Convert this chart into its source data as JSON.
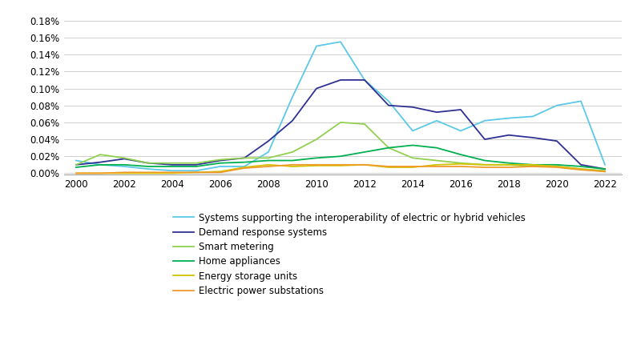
{
  "years": [
    2000,
    2001,
    2002,
    2003,
    2004,
    2005,
    2006,
    2007,
    2008,
    2009,
    2010,
    2011,
    2012,
    2013,
    2014,
    2015,
    2016,
    2017,
    2018,
    2019,
    2020,
    2021,
    2022
  ],
  "series": [
    {
      "label": "Systems supporting the interoperability of electric or hybrid vehicles",
      "color": "#5BC8E8",
      "values": [
        0.00015,
        0.0001,
        8e-05,
        5e-05,
        3e-05,
        3e-05,
        8e-05,
        8e-05,
        0.00025,
        0.0009,
        0.0015,
        0.00155,
        0.0011,
        0.00085,
        0.0005,
        0.00062,
        0.0005,
        0.00062,
        0.00065,
        0.00067,
        0.0008,
        0.00085,
        0.0001
      ]
    },
    {
      "label": "Demand response systems",
      "color": "#2E3192",
      "values": [
        0.0001,
        0.00013,
        0.00017,
        0.00012,
        0.0001,
        0.0001,
        0.00015,
        0.00018,
        0.00038,
        0.00062,
        0.001,
        0.0011,
        0.0011,
        0.0008,
        0.00078,
        0.00072,
        0.00075,
        0.0004,
        0.00045,
        0.00042,
        0.00038,
        0.0001,
        5e-05
      ]
    },
    {
      "label": "Smart metering",
      "color": "#92D050",
      "values": [
        0.0001,
        0.00022,
        0.00018,
        0.00012,
        0.00012,
        0.00012,
        0.00016,
        0.00018,
        0.00018,
        0.00025,
        0.0004,
        0.0006,
        0.00058,
        0.0003,
        0.00018,
        0.00015,
        0.00012,
        0.0001,
        0.0001,
        8e-05,
        8e-05,
        5e-05,
        3e-05
      ]
    },
    {
      "label": "Home appliances",
      "color": "#00B050",
      "values": [
        7e-05,
        0.0001,
        0.0001,
        8e-05,
        8e-05,
        8e-05,
        0.00012,
        0.00013,
        0.00015,
        0.00015,
        0.00018,
        0.0002,
        0.00025,
        0.0003,
        0.00033,
        0.0003,
        0.00022,
        0.00015,
        0.00012,
        0.0001,
        0.0001,
        8e-05,
        5e-05
      ]
    },
    {
      "label": "Energy storage units",
      "color": "#D4C200",
      "values": [
        0.0,
        0.0,
        0.0,
        0.0,
        0.0,
        1e-05,
        2e-05,
        7e-05,
        0.0001,
        8e-05,
        9e-05,
        9e-05,
        0.0001,
        7e-05,
        7e-05,
        0.0001,
        0.00011,
        0.0001,
        0.0001,
        0.0001,
        8e-05,
        5e-05,
        2e-05
      ]
    },
    {
      "label": "Electric power substations",
      "color": "#ED9C2A",
      "values": [
        0.0,
        0.0,
        1e-05,
        1e-05,
        1e-05,
        1e-05,
        1e-05,
        6e-05,
        8e-05,
        0.0001,
        0.0001,
        0.0001,
        0.0001,
        8e-05,
        8e-05,
        8e-05,
        8e-05,
        7e-05,
        7e-05,
        8e-05,
        7e-05,
        4e-05,
        2e-05
      ]
    }
  ],
  "yticks": [
    0.0,
    0.0002,
    0.0004,
    0.0006,
    0.0008,
    0.001,
    0.0012,
    0.0014,
    0.0016,
    0.0018
  ],
  "xticks": [
    2000,
    2002,
    2004,
    2006,
    2008,
    2010,
    2012,
    2014,
    2016,
    2018,
    2020,
    2022
  ],
  "xlim": [
    1999.5,
    2022.7
  ],
  "ylim": [
    -1.5e-05,
    0.00192
  ],
  "background_color": "#ffffff",
  "grid_color": "#c8c8c8",
  "linewidth": 1.3
}
